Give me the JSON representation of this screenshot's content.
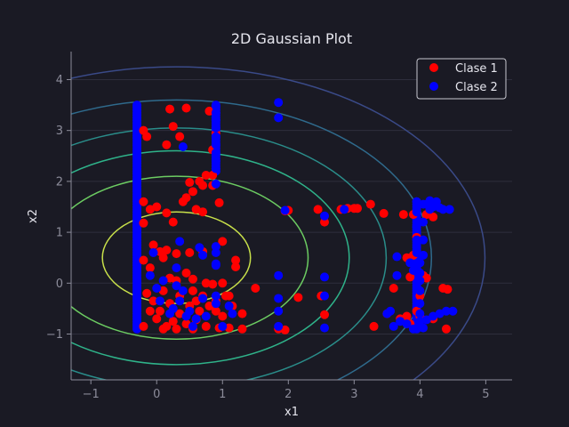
{
  "chart_data": {
    "type": "scatter",
    "title": "2D Gaussian Plot",
    "xlabel": "x1",
    "ylabel": "x2",
    "xlim": [
      -1.3,
      5.4
    ],
    "ylim": [
      -1.9,
      4.55
    ],
    "xticks": [
      -1,
      0,
      1,
      2,
      3,
      4,
      5
    ],
    "yticks": [
      -1,
      0,
      1,
      2,
      3,
      4
    ],
    "grid": "horizontal",
    "legend": {
      "placement": "top-right"
    },
    "colors": {
      "background": "#1a1a24",
      "axis": "#8c8c9a",
      "text": "#e6e6ee",
      "clase1": "#ff0000",
      "clase2": "#0000ff"
    },
    "contours": {
      "center": [
        0.3,
        0.5
      ],
      "sigma_x": 1.25,
      "sigma_y": 1.0,
      "levels": [
        {
          "value": 0.9,
          "color": "#c8e04a"
        },
        {
          "value": 1.6,
          "color": "#6ccc62"
        },
        {
          "value": 2.1,
          "color": "#2fb38a"
        },
        {
          "value": 2.55,
          "color": "#2a8d8a"
        },
        {
          "value": 3.1,
          "color": "#2f6a8c"
        },
        {
          "value": 3.75,
          "color": "#3a4a88"
        }
      ]
    },
    "series": [
      {
        "name": "Clase 1",
        "color": "#ff0000",
        "points": [
          [
            -0.2,
            3.0
          ],
          [
            -0.15,
            2.88
          ],
          [
            0.2,
            3.42
          ],
          [
            0.45,
            3.44
          ],
          [
            0.8,
            3.38
          ],
          [
            0.25,
            3.08
          ],
          [
            0.35,
            2.88
          ],
          [
            0.15,
            2.72
          ],
          [
            0.9,
            2.95
          ],
          [
            0.85,
            2.62
          ],
          [
            0.75,
            2.12
          ],
          [
            0.65,
            2.0
          ],
          [
            0.85,
            2.12
          ],
          [
            0.5,
            1.98
          ],
          [
            0.7,
            1.92
          ],
          [
            0.85,
            1.92
          ],
          [
            0.55,
            1.8
          ],
          [
            0.45,
            1.68
          ],
          [
            0.4,
            1.6
          ],
          [
            0.6,
            1.45
          ],
          [
            0.7,
            1.4
          ],
          [
            0.95,
            1.58
          ],
          [
            -0.2,
            1.6
          ],
          [
            -0.1,
            1.45
          ],
          [
            0.0,
            1.5
          ],
          [
            0.15,
            1.38
          ],
          [
            0.25,
            1.2
          ],
          [
            -0.2,
            1.18
          ],
          [
            -0.05,
            0.75
          ],
          [
            0.05,
            0.62
          ],
          [
            0.1,
            0.5
          ],
          [
            0.15,
            0.65
          ],
          [
            0.3,
            0.58
          ],
          [
            0.5,
            0.6
          ],
          [
            0.7,
            0.62
          ],
          [
            1.0,
            0.82
          ],
          [
            1.2,
            0.45
          ],
          [
            1.2,
            0.32
          ],
          [
            -0.2,
            0.45
          ],
          [
            -0.1,
            0.3
          ],
          [
            0.3,
            0.05
          ],
          [
            0.55,
            0.08
          ],
          [
            0.75,
            0.0
          ],
          [
            0.85,
            -0.02
          ],
          [
            1.0,
            0.0
          ],
          [
            1.1,
            -0.25
          ],
          [
            1.15,
            -0.45
          ],
          [
            0.1,
            -0.15
          ],
          [
            -0.05,
            -0.35
          ],
          [
            0.2,
            -0.4
          ],
          [
            0.35,
            -0.6
          ],
          [
            0.5,
            -0.45
          ],
          [
            0.65,
            -0.55
          ],
          [
            0.8,
            -0.45
          ],
          [
            0.9,
            -0.55
          ],
          [
            1.0,
            -0.65
          ],
          [
            -0.1,
            -0.55
          ],
          [
            0.0,
            -0.7
          ],
          [
            0.25,
            -0.75
          ],
          [
            0.45,
            -0.8
          ],
          [
            0.6,
            -0.72
          ],
          [
            0.75,
            -0.85
          ],
          [
            0.95,
            -0.88
          ],
          [
            1.1,
            -0.88
          ],
          [
            1.3,
            -0.9
          ],
          [
            -0.2,
            -0.85
          ],
          [
            0.1,
            -0.9
          ],
          [
            0.3,
            -0.9
          ],
          [
            0.55,
            -0.9
          ],
          [
            1.3,
            -0.6
          ],
          [
            1.5,
            -0.1
          ],
          [
            1.85,
            -0.9
          ],
          [
            1.95,
            -0.92
          ],
          [
            2.0,
            1.43
          ],
          [
            1.95,
            1.42
          ],
          [
            2.45,
            1.45
          ],
          [
            2.55,
            1.2
          ],
          [
            2.55,
            -0.62
          ],
          [
            2.5,
            -0.25
          ],
          [
            2.15,
            -0.28
          ],
          [
            2.8,
            1.45
          ],
          [
            2.9,
            1.47
          ],
          [
            3.0,
            1.47
          ],
          [
            3.05,
            1.47
          ],
          [
            3.25,
            1.55
          ],
          [
            3.45,
            1.37
          ],
          [
            3.75,
            1.35
          ],
          [
            3.9,
            1.35
          ],
          [
            4.1,
            1.35
          ],
          [
            4.2,
            1.3
          ],
          [
            3.6,
            -0.1
          ],
          [
            3.5,
            -0.6
          ],
          [
            3.7,
            -0.7
          ],
          [
            3.8,
            -0.65
          ],
          [
            3.85,
            -0.8
          ],
          [
            4.0,
            -0.65
          ],
          [
            4.2,
            -0.7
          ],
          [
            4.35,
            -0.1
          ],
          [
            4.42,
            -0.12
          ],
          [
            4.4,
            -0.9
          ],
          [
            3.3,
            -0.85
          ],
          [
            3.8,
            0.5
          ],
          [
            3.85,
            0.12
          ],
          [
            3.9,
            0.55
          ],
          [
            3.95,
            0.9
          ],
          [
            4.05,
            0.15
          ],
          [
            4.1,
            0.1
          ],
          [
            4.0,
            -0.25
          ],
          [
            3.95,
            -0.55
          ],
          [
            0.35,
            -0.25
          ],
          [
            0.55,
            -0.15
          ],
          [
            0.2,
            0.1
          ],
          [
            0.7,
            -0.25
          ],
          [
            0.45,
            0.2
          ],
          [
            -0.15,
            -0.2
          ],
          [
            0.9,
            -0.35
          ],
          [
            0.6,
            -0.35
          ],
          [
            1.05,
            -0.25
          ],
          [
            0.15,
            -0.85
          ],
          [
            0.05,
            -0.55
          ]
        ]
      },
      {
        "name": "Clase 2",
        "color": "#0000ff",
        "points": [
          [
            0.9,
            3.48
          ],
          [
            0.9,
            3.35
          ],
          [
            0.9,
            3.2
          ],
          [
            0.9,
            3.05
          ],
          [
            0.9,
            2.88
          ],
          [
            0.9,
            2.72
          ],
          [
            0.9,
            2.56
          ],
          [
            0.9,
            2.4
          ],
          [
            0.9,
            2.25
          ],
          [
            0.9,
            1.95
          ],
          [
            0.9,
            0.72
          ],
          [
            0.9,
            0.6
          ],
          [
            0.9,
            0.38
          ],
          [
            0.9,
            0.35
          ],
          [
            0.9,
            -0.25
          ],
          [
            0.9,
            -0.4
          ],
          [
            0.4,
            2.68
          ],
          [
            0.35,
            0.82
          ],
          [
            0.65,
            0.7
          ],
          [
            0.7,
            0.55
          ],
          [
            0.3,
            0.3
          ],
          [
            0.3,
            -0.05
          ],
          [
            0.35,
            -0.35
          ],
          [
            0.5,
            -0.55
          ],
          [
            0.6,
            -0.7
          ],
          [
            0.4,
            -0.15
          ],
          [
            0.2,
            -0.6
          ],
          [
            1.1,
            -0.45
          ],
          [
            1.15,
            -0.6
          ],
          [
            -0.05,
            0.6
          ],
          [
            0.0,
            -0.1
          ],
          [
            0.05,
            -0.35
          ],
          [
            0.1,
            0.05
          ],
          [
            1.0,
            -0.85
          ],
          [
            0.55,
            -0.85
          ],
          [
            0.25,
            -0.5
          ],
          [
            0.7,
            -0.3
          ],
          [
            0.45,
            -0.65
          ],
          [
            0.75,
            -0.65
          ],
          [
            -0.1,
            0.15
          ],
          [
            1.85,
            3.55
          ],
          [
            1.85,
            3.25
          ],
          [
            1.95,
            1.43
          ],
          [
            1.85,
            0.15
          ],
          [
            1.85,
            -0.3
          ],
          [
            1.85,
            -0.55
          ],
          [
            1.85,
            -0.85
          ],
          [
            2.55,
            1.32
          ],
          [
            2.55,
            0.12
          ],
          [
            2.55,
            -0.25
          ],
          [
            2.55,
            -0.88
          ],
          [
            2.85,
            1.45
          ],
          [
            3.5,
            -0.6
          ],
          [
            3.55,
            -0.55
          ],
          [
            3.6,
            -0.85
          ],
          [
            3.65,
            0.15
          ],
          [
            3.65,
            0.52
          ],
          [
            3.85,
            0.4
          ],
          [
            3.9,
            0.25
          ],
          [
            3.95,
            1.6
          ],
          [
            3.95,
            1.4
          ],
          [
            3.95,
            1.1
          ],
          [
            3.95,
            0.85
          ],
          [
            3.95,
            0.6
          ],
          [
            4.0,
            0.4
          ],
          [
            4.0,
            0.2
          ],
          [
            4.0,
            0.05
          ],
          [
            4.0,
            -0.15
          ],
          [
            4.0,
            -0.4
          ],
          [
            4.0,
            -0.6
          ],
          [
            4.0,
            -0.75
          ],
          [
            4.05,
            1.55
          ],
          [
            4.05,
            1.2
          ],
          [
            4.05,
            0.85
          ],
          [
            4.05,
            0.55
          ],
          [
            4.1,
            1.55
          ],
          [
            4.15,
            1.45
          ],
          [
            4.15,
            1.62
          ],
          [
            4.2,
            1.5
          ],
          [
            4.25,
            1.6
          ],
          [
            4.3,
            1.48
          ],
          [
            4.35,
            1.45
          ],
          [
            4.45,
            1.45
          ],
          [
            4.1,
            -0.72
          ],
          [
            4.2,
            -0.65
          ],
          [
            4.3,
            -0.6
          ],
          [
            4.4,
            -0.55
          ],
          [
            4.5,
            -0.55
          ],
          [
            4.05,
            -0.88
          ],
          [
            3.9,
            -0.9
          ],
          [
            3.8,
            -0.8
          ],
          [
            3.7,
            -0.75
          ]
        ]
      }
    ],
    "dense_columns": [
      {
        "series": "Clase 2",
        "x": -0.3,
        "y_from": -0.9,
        "y_to": 3.5
      },
      {
        "series": "Clase 2",
        "x": 0.9,
        "y_from": 2.2,
        "y_to": 3.5
      },
      {
        "series": "Clase 2",
        "x": 3.95,
        "y_from": -0.9,
        "y_to": 1.6
      }
    ]
  }
}
